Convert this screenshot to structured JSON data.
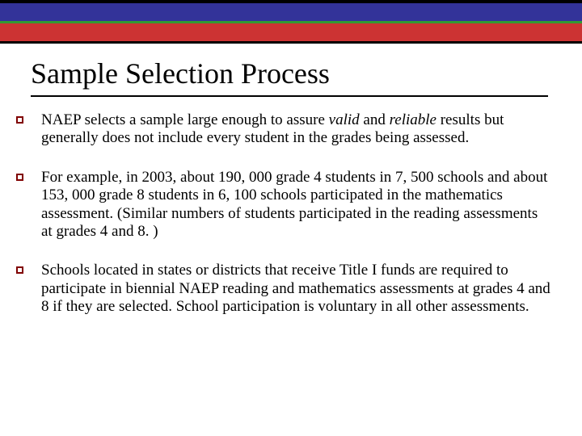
{
  "header": {
    "bars": [
      {
        "type": "black-top-line",
        "color": "#000000",
        "height": 4
      },
      {
        "type": "blue-bar",
        "color": "#333399",
        "height": 22
      },
      {
        "type": "green-line",
        "color": "#339933",
        "height": 3
      },
      {
        "type": "red-bar",
        "color": "#cc3333",
        "height": 22
      },
      {
        "type": "black-line",
        "color": "#000000",
        "height": 3
      }
    ]
  },
  "title": "Sample Selection Process",
  "bullets": [
    {
      "pre": "NAEP selects a sample large enough to assure ",
      "italic1": "valid",
      "mid": " and ",
      "italic2": "reliable",
      "post": " results but generally does not include every student in the grades being assessed."
    },
    {
      "text": "For example, in 2003, about 190, 000 grade 4 students in 7, 500 schools and about 153, 000 grade 8 students in 6, 100 schools participated in the mathematics assessment. (Similar numbers of students participated in the reading assessments at grades 4 and 8. )"
    },
    {
      "text": "Schools located in states or districts that receive Title I funds are required to participate in biennial NAEP reading and mathematics assessments at grades 4 and 8 if they are selected. School participation is voluntary in all other assessments."
    }
  ],
  "styling": {
    "background_color": "#ffffff",
    "title_fontsize": 36,
    "body_fontsize": 19,
    "bullet_border_color": "#800000",
    "underline_color": "#000000",
    "font_family": "Times New Roman"
  }
}
